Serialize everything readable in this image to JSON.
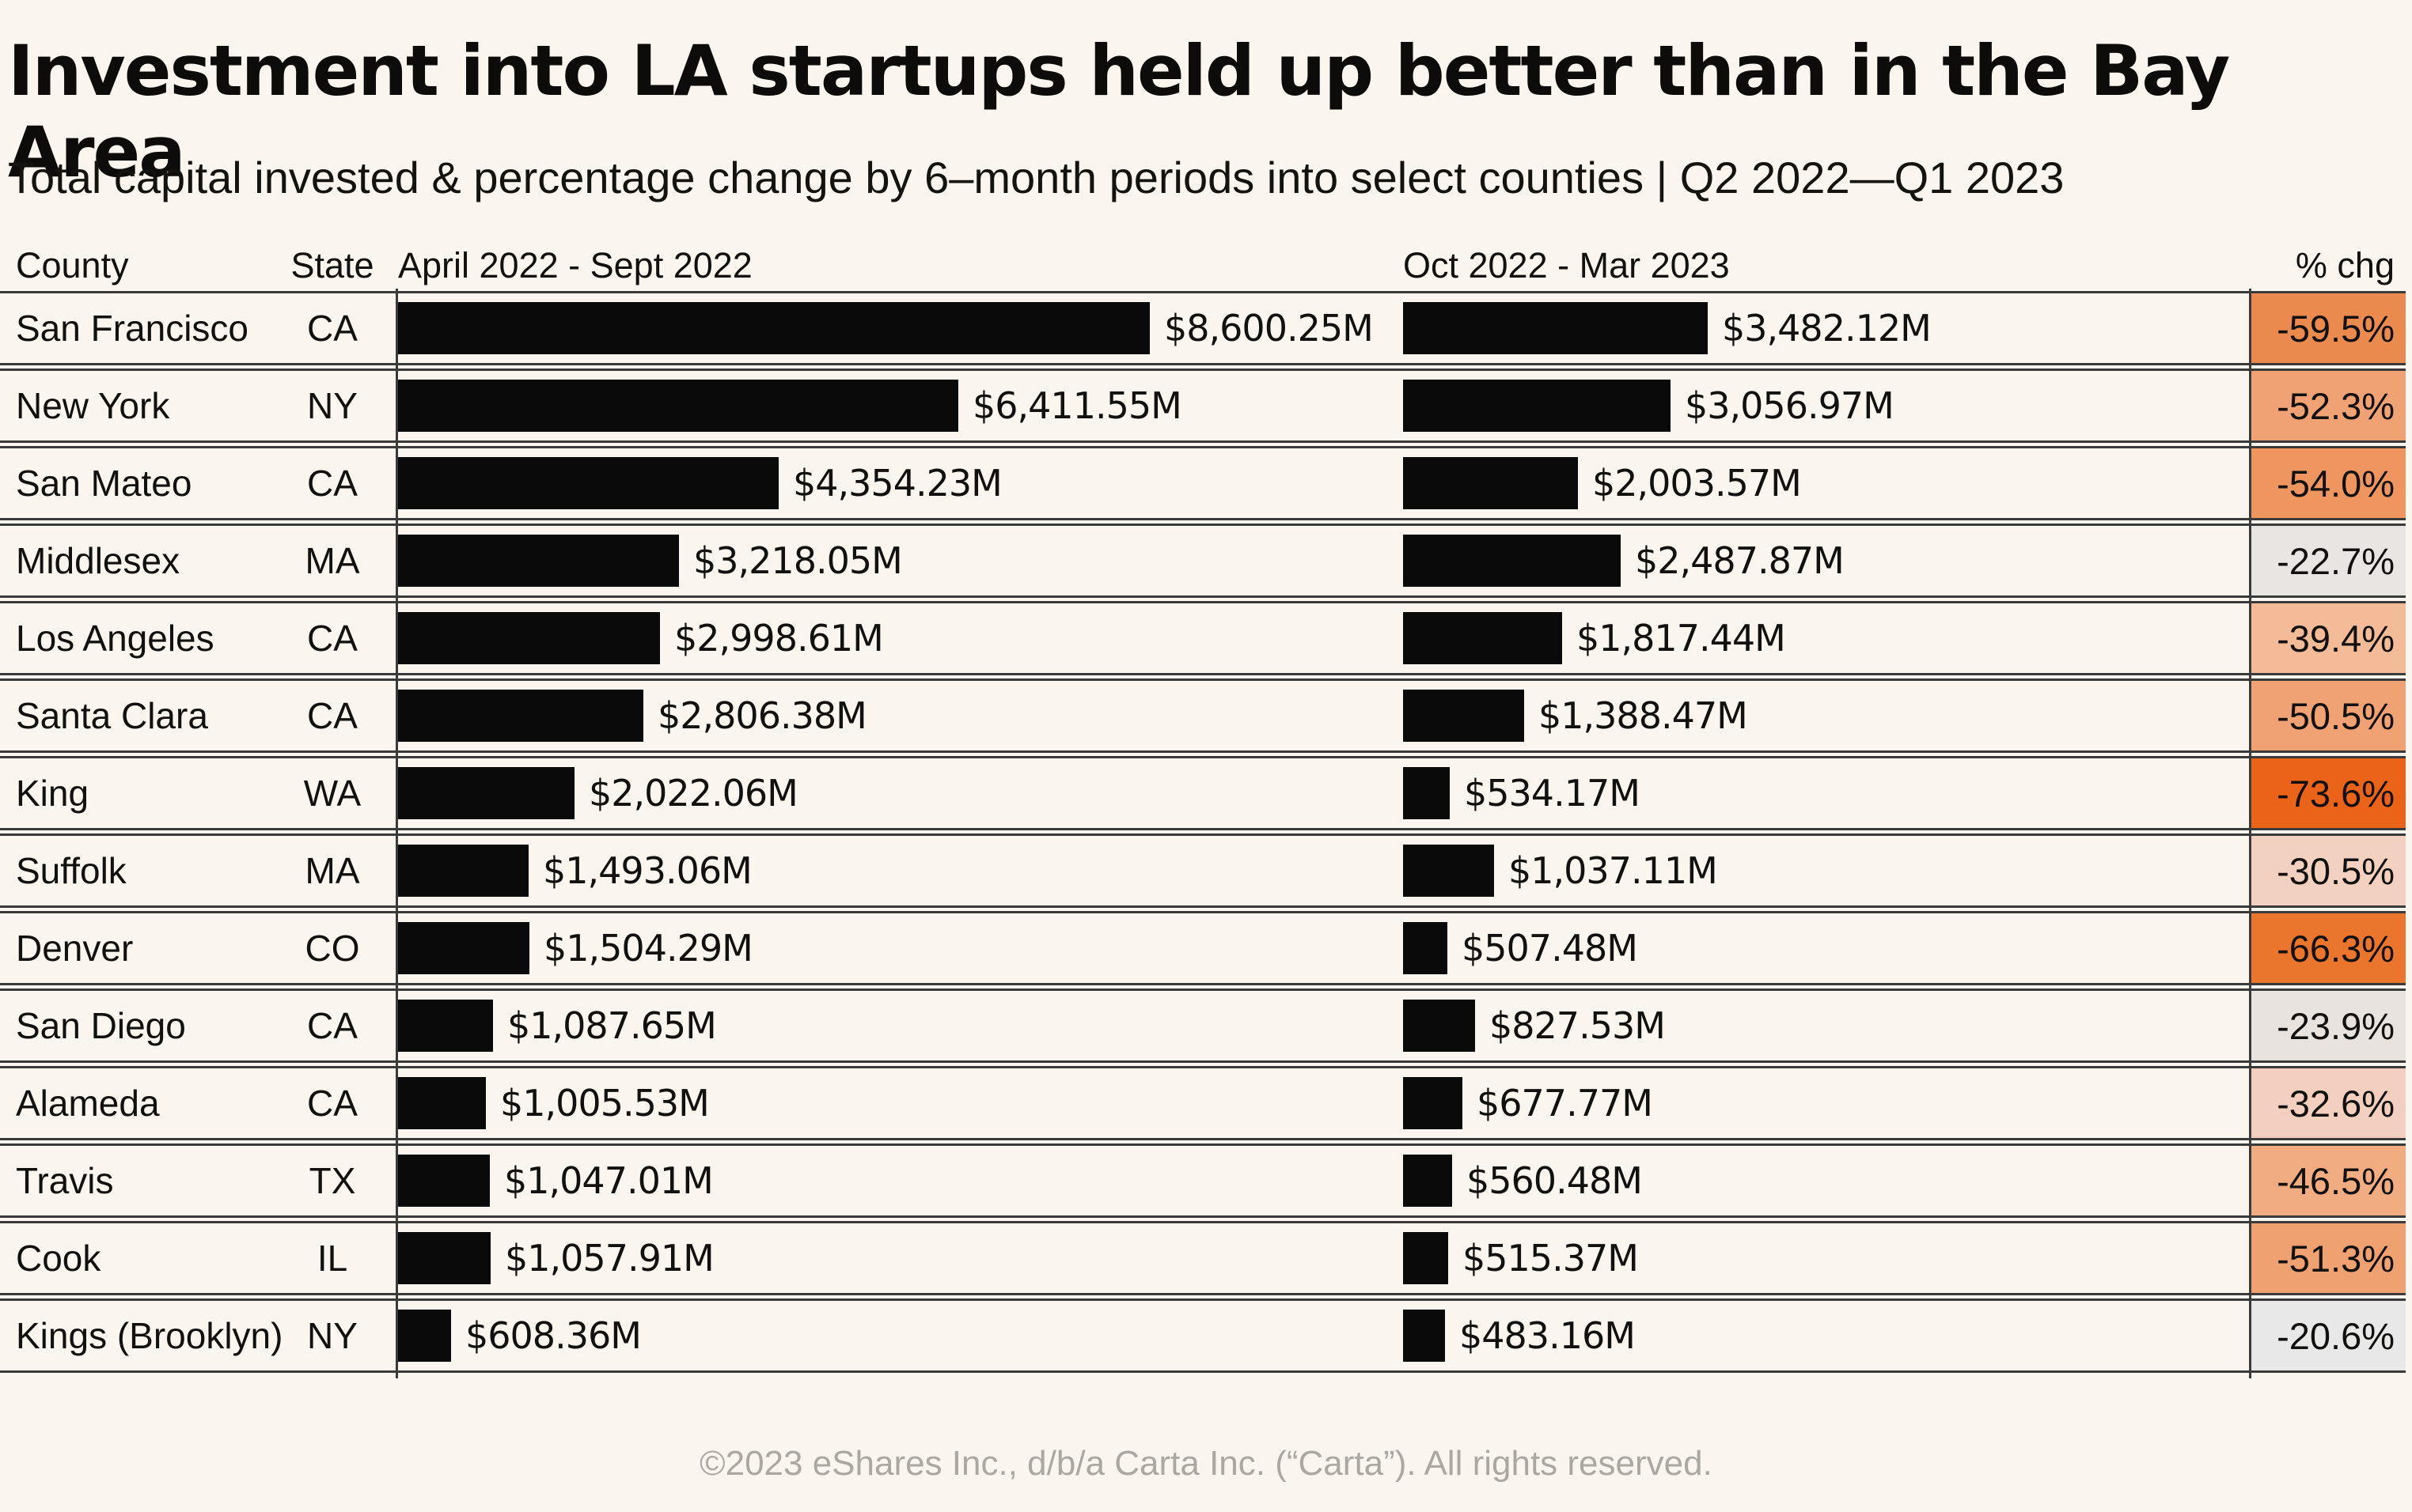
{
  "page": {
    "title": "Investment into LA startups held up better than in the Bay Area",
    "subtitle": "Total capital invested & percentage change by 6–month periods into select counties | Q2 2022—Q1 2023",
    "footer": "©2023 eShares Inc., d/b/a Carta Inc. (“Carta”). All rights reserved."
  },
  "table": {
    "headers": {
      "county": "County",
      "state": "State",
      "period1": "April 2022 - Sept 2022",
      "period2": "Oct 2022 - Mar 2023",
      "pct": "% chg"
    }
  },
  "colors": {
    "background": "#FAF6EF",
    "bar": "#0A0A0A",
    "grid_line": "#3A3A3A",
    "footer_text": "#ABA7A1",
    "strongest_decline": "#EA6318",
    "weakest_decline": "#E7E8E7"
  },
  "chart_data": {
    "type": "bar",
    "title": "Investment into LA startups held up better than in the Bay Area",
    "subtitle": "Total capital invested & percentage change by 6–month periods into select counties | Q2 2022—Q1 2023",
    "unit": "$M",
    "xlim": [
      0,
      8600.25
    ],
    "grid": false,
    "legend_position": "column-headers",
    "categories": [
      "San Francisco",
      "New York",
      "San Mateo",
      "Middlesex",
      "Los Angeles",
      "Santa Clara",
      "King",
      "Suffolk",
      "Denver",
      "San Diego",
      "Alameda",
      "Travis",
      "Cook",
      "Kings (Brooklyn)"
    ],
    "states": [
      "CA",
      "NY",
      "CA",
      "MA",
      "CA",
      "CA",
      "WA",
      "MA",
      "CO",
      "CA",
      "CA",
      "TX",
      "IL",
      "NY"
    ],
    "series": [
      {
        "name": "April 2022 - Sept 2022",
        "values": [
          8600.25,
          6411.55,
          4354.23,
          3218.05,
          2998.61,
          2806.38,
          2022.06,
          1493.06,
          1504.29,
          1087.65,
          1005.53,
          1047.01,
          1057.91,
          608.36
        ],
        "labels": [
          "$8,600.25M",
          "$6,411.55M",
          "$4,354.23M",
          "$3,218.05M",
          "$2,998.61M",
          "$2,806.38M",
          "$2,022.06M",
          "$1,493.06M",
          "$1,504.29M",
          "$1,087.65M",
          "$1,005.53M",
          "$1,047.01M",
          "$1,057.91M",
          "$608.36M"
        ]
      },
      {
        "name": "Oct 2022 - Mar 2023",
        "values": [
          3482.12,
          3056.97,
          2003.57,
          2487.87,
          1817.44,
          1388.47,
          534.17,
          1037.11,
          507.48,
          827.53,
          677.77,
          560.48,
          515.37,
          483.16
        ],
        "labels": [
          "$3,482.12M",
          "$3,056.97M",
          "$2,003.57M",
          "$2,487.87M",
          "$1,817.44M",
          "$1,388.47M",
          "$534.17M",
          "$1,037.11M",
          "$507.48M",
          "$827.53M",
          "$677.77M",
          "$560.48M",
          "$515.37M",
          "$483.16M"
        ]
      }
    ],
    "pct_change": {
      "values": [
        -59.5,
        -52.3,
        -54.0,
        -22.7,
        -39.4,
        -50.5,
        -73.6,
        -30.5,
        -66.3,
        -23.9,
        -32.6,
        -46.5,
        -51.3,
        -20.6
      ],
      "labels": [
        "-59.5%",
        "-52.3%",
        "-54.0%",
        "-22.7%",
        "-39.4%",
        "-50.5%",
        "-73.6%",
        "-30.5%",
        "-66.3%",
        "-23.9%",
        "-32.6%",
        "-46.5%",
        "-51.3%",
        "-20.6%"
      ],
      "cell_colors": [
        "#EA8A4F",
        "#F0A275",
        "#EE9560",
        "#E9E5E2",
        "#F4BB99",
        "#F0A274",
        "#EA6318",
        "#F3D1C0",
        "#EA752D",
        "#E9E3E0",
        "#F2CFBE",
        "#F1AC82",
        "#F0A172",
        "#E7E8E7"
      ]
    }
  }
}
